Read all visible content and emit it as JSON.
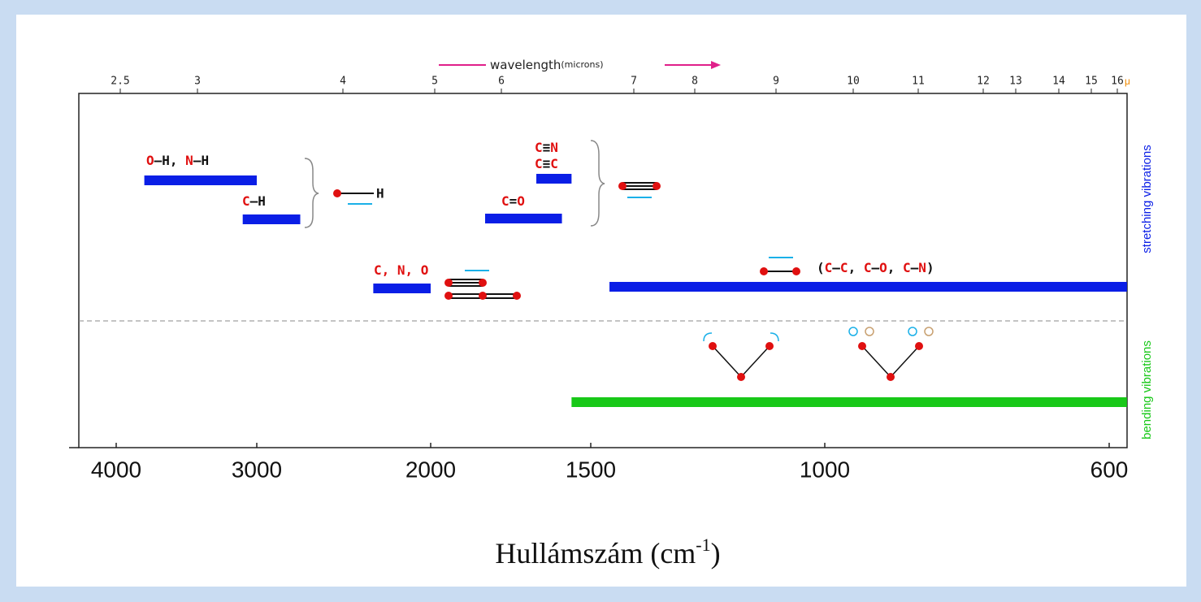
{
  "chart_data": {
    "type": "range",
    "top_axis": {
      "title": "wavelength",
      "title_unit": "(microns)",
      "ticks": [
        2.5,
        3,
        4,
        5,
        6,
        7,
        8,
        9,
        10,
        11,
        12,
        13,
        14,
        15,
        16
      ],
      "unit": "μ"
    },
    "xticks": [
      4000,
      3000,
      2000,
      1500,
      1000,
      600
    ],
    "xlabel": "Hullámszám (cm",
    "xlabel_sup": "-1",
    "xlabel_end": ")",
    "series": [
      {
        "name": "stretching vibrations",
        "color": "#0a1ee6",
        "ranges": [
          {
            "label": [
              [
                {
                  "text": "O",
                  "color": "#e01010"
                },
                {
                  "text": "—H, ",
                  "color": "#111111"
                },
                {
                  "text": "N",
                  "color": "#e01010"
                },
                {
                  "text": "—H",
                  "color": "#111111"
                }
              ]
            ],
            "values": [
              3800,
              3000
            ]
          },
          {
            "label": [
              [
                {
                  "text": "C",
                  "color": "#e01010"
                },
                {
                  "text": "—H",
                  "color": "#111111"
                }
              ]
            ],
            "values": [
              3100,
              2750
            ]
          },
          {
            "label": [
              [
                {
                  "text": "C",
                  "color": "#e01010"
                },
                {
                  "text": "≡",
                  "color": "#111111"
                },
                {
                  "text": "N",
                  "color": "#e01010"
                }
              ],
              [
                {
                  "text": "C",
                  "color": "#e01010"
                },
                {
                  "text": "≡",
                  "color": "#111111"
                },
                {
                  "text": "C",
                  "color": "#e01010"
                }
              ]
            ],
            "values": [
              1670,
              1560
            ]
          },
          {
            "label": [
              [
                {
                  "text": "C",
                  "color": "#e01010"
                },
                {
                  "text": "=",
                  "color": "#111111"
                },
                {
                  "text": "O",
                  "color": "#e01010"
                }
              ]
            ],
            "values": [
              1830,
              1590
            ]
          },
          {
            "label": [
              [
                {
                  "text": "C, N, O",
                  "color": "#e01010"
                }
              ]
            ],
            "values": [
              2330,
              2000
            ]
          },
          {
            "label": [
              [
                {
                  "text": "(",
                  "color": "#111111"
                },
                {
                  "text": "C",
                  "color": "#e01010"
                },
                {
                  "text": "—",
                  "color": "#111111"
                },
                {
                  "text": "C",
                  "color": "#e01010"
                },
                {
                  "text": ", ",
                  "color": "#111111"
                },
                {
                  "text": "C",
                  "color": "#e01010"
                },
                {
                  "text": "—",
                  "color": "#111111"
                },
                {
                  "text": "O",
                  "color": "#e01010"
                },
                {
                  "text": ", ",
                  "color": "#111111"
                },
                {
                  "text": "C",
                  "color": "#e01010"
                },
                {
                  "text": "—",
                  "color": "#111111"
                },
                {
                  "text": "N",
                  "color": "#e01010"
                },
                {
                  "text": ")",
                  "color": "#111111"
                }
              ]
            ],
            "values": [
              1460,
              575
            ]
          }
        ]
      },
      {
        "name": "bending vibrations",
        "color": "#18c818",
        "ranges": [
          {
            "values": [
              1560,
              575
            ]
          }
        ]
      }
    ]
  }
}
